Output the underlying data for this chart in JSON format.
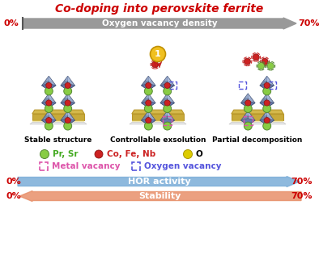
{
  "title": "Co-doping into perovskite ferrite",
  "title_color": "#cc0000",
  "top_arrow_label": "Oxygen vacancy density",
  "top_arrow_color": "#999999",
  "bottom_arrow1_label": "HOR activity",
  "bottom_arrow1_color": "#7aadd8",
  "bottom_arrow2_label": "Stability",
  "bottom_arrow2_color": "#e8906a",
  "pct_color": "#cc0000",
  "structure_labels": [
    "Stable structure",
    "Controllable exsolution",
    "Partial decomposition"
  ],
  "bg_color": "#ffffff",
  "oct_face_color": "#8899bb",
  "oct_top_color": "#aabbdd",
  "oct_side_color": "#6677aa",
  "platform_color": "#d4b84a",
  "platform_edge_color": "#c0a030",
  "green_atom": "#88cc44",
  "red_atom": "#cc2222",
  "yellow_atom": "#ddcc00",
  "metal_vac_color": "#dd55aa",
  "oxygen_vac_color": "#5555dd"
}
